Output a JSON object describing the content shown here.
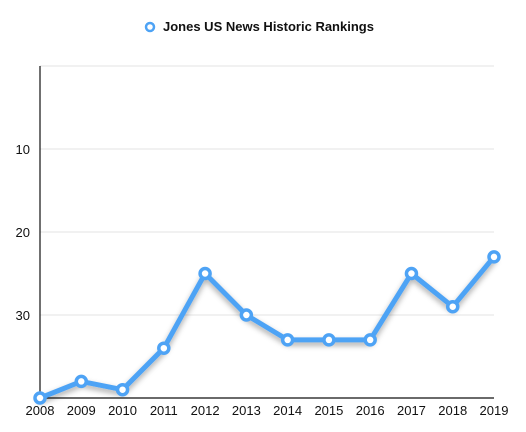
{
  "chart_data": {
    "type": "line",
    "title": "",
    "xlabel": "",
    "ylabel": "",
    "y_inverted": true,
    "ylim": [
      0,
      40
    ],
    "yticks": [
      10,
      20,
      30
    ],
    "grid": true,
    "legend_position": "top",
    "series": [
      {
        "name": "Jones US News Historic Rankings",
        "color": "#4ea3f5",
        "x": [
          "2008",
          "2009",
          "2010",
          "2011",
          "2012",
          "2013",
          "2014",
          "2015",
          "2016",
          "2017",
          "2018",
          "2019"
        ],
        "values": [
          40,
          38,
          39,
          34,
          25,
          30,
          33,
          33,
          33,
          25,
          29,
          23
        ]
      }
    ]
  }
}
